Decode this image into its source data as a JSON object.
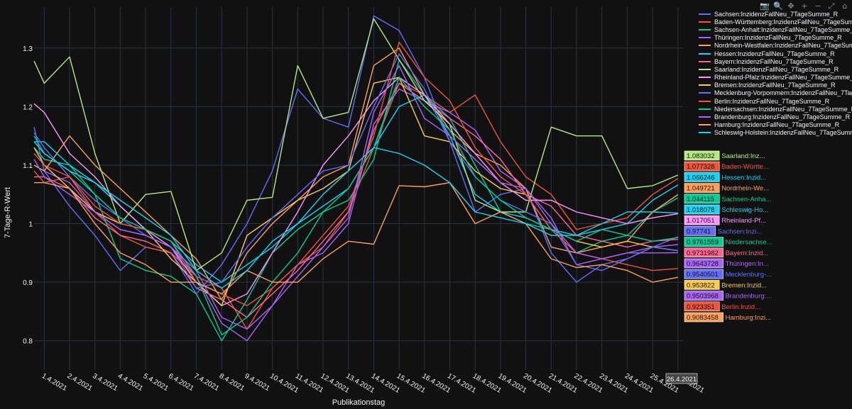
{
  "toolbar": {
    "icons": [
      "camera-icon",
      "zoom-icon",
      "pan-icon",
      "zoom-in-icon",
      "zoom-out-icon",
      "autoscale-icon",
      "reset-axes-icon"
    ]
  },
  "chart_data": {
    "type": "line",
    "xlabel": "Publikationstag",
    "ylabel": "7-Tage-R-Wert",
    "x_ticks": [
      "1.4.2021",
      "2.4.2021",
      "3.4.2021",
      "4.4.2021",
      "5.4.2021",
      "6.4.2021",
      "7.4.2021",
      "8.4.2021",
      "9.4.2021",
      "10.4.2021",
      "11.4.2021",
      "12.4.2021",
      "13.4.2021",
      "14.4.2021",
      "15.4.2021",
      "16.4.2021",
      "17.4.2021",
      "18.4.2021",
      "19.4.2021",
      "20.4.2021",
      "21.4.2021",
      "22.4.2021",
      "23.4.2021",
      "24.4.2021",
      "25.4.2021",
      "26.4.2021"
    ],
    "x_range": [
      0.6,
      26.2
    ],
    "y_ticks": [
      0.8,
      0.9,
      1,
      1.1,
      1.2,
      1.3
    ],
    "y_tick_labels": [
      "0.8",
      "0.9",
      "1",
      "1.1",
      "1.2",
      "1.3"
    ],
    "ylim": [
      0.75,
      1.37
    ],
    "hover_x_label": "26.4.2021",
    "series": [
      {
        "name": "Sachsen:InzidenzFallNeu_7TageSumme_R",
        "color": "#636efa",
        "hover_value": "0.97741",
        "hover_short": "Sachsen:Inzi...",
        "x": [
          0.6,
          1,
          2,
          3,
          4,
          5,
          6,
          7,
          8,
          9,
          10,
          11,
          12,
          13,
          14,
          15,
          16,
          17,
          18,
          19,
          20,
          21,
          22,
          23,
          24,
          25,
          26
        ],
        "values": [
          1.165,
          1.09,
          1.03,
          0.98,
          0.92,
          0.96,
          0.95,
          0.88,
          0.93,
          1.0,
          1.09,
          1.23,
          1.18,
          1.165,
          1.355,
          1.33,
          1.25,
          1.14,
          1.02,
          1.05,
          1.06,
          0.95,
          0.9,
          0.93,
          0.94,
          0.96,
          0.97741
        ]
      },
      {
        "name": "Baden-Württemberg:InzidenzFallNeu_7TageSumme_R",
        "color": "#ef553b",
        "hover_value": "1.077328",
        "hover_short": "Baden-Württe...",
        "x": [
          0.6,
          1,
          2,
          3,
          4,
          5,
          6,
          7,
          8,
          9,
          10,
          11,
          12,
          13,
          14,
          15,
          16,
          17,
          18,
          19,
          20,
          21,
          22,
          23,
          24,
          25,
          26
        ],
        "values": [
          1.09,
          1.07,
          1.08,
          1.02,
          0.98,
          0.96,
          0.95,
          0.91,
          0.89,
          0.82,
          0.89,
          0.93,
          0.96,
          1.02,
          1.13,
          1.24,
          1.22,
          1.19,
          1.22,
          1.14,
          1.08,
          1.05,
          0.99,
          1.0,
          1.01,
          1.05,
          1.077328
        ]
      },
      {
        "name": "Sachsen-Anhalt:InzidenzFallNeu_7TageSumme_R",
        "color": "#00cc96",
        "hover_value": "1.044115",
        "hover_short": "Sachsen-Anha...",
        "x": [
          0.6,
          1,
          2,
          3,
          4,
          5,
          6,
          7,
          8,
          9,
          10,
          11,
          12,
          13,
          14,
          15,
          16,
          17,
          18,
          19,
          20,
          21,
          22,
          23,
          24,
          25,
          26
        ],
        "values": [
          1.13,
          1.11,
          1.1,
          1.05,
          0.94,
          0.92,
          0.91,
          0.88,
          0.8,
          0.87,
          0.95,
          0.99,
          1.02,
          1.04,
          1.11,
          1.28,
          1.22,
          1.18,
          1.1,
          1.02,
          1.0,
          0.99,
          0.95,
          0.97,
          0.98,
          1.02,
          1.044115
        ]
      },
      {
        "name": "Thüringen:InzidenzFallNeu_7TageSumme_R",
        "color": "#ab63fa",
        "hover_value": "0.9643728",
        "hover_short": "Thüringen:In...",
        "x": [
          0.6,
          1,
          2,
          3,
          4,
          5,
          6,
          7,
          8,
          9,
          10,
          11,
          12,
          13,
          14,
          15,
          16,
          17,
          18,
          19,
          20,
          21,
          22,
          23,
          24,
          25,
          26
        ],
        "values": [
          1.1,
          1.09,
          1.07,
          1.02,
          0.99,
          0.98,
          0.96,
          0.91,
          0.83,
          0.8,
          0.86,
          0.93,
          0.95,
          1.0,
          1.17,
          1.23,
          1.21,
          1.19,
          1.16,
          1.09,
          1.06,
          1.01,
          0.93,
          0.94,
          0.95,
          0.96,
          0.9643728
        ]
      },
      {
        "name": "Nordrhein-Westfalen:InzidenzFallNeu_7TageSumme_R",
        "color": "#ffa15a",
        "hover_value": "1.049721",
        "hover_short": "Nordrhein-We...",
        "x": [
          0.6,
          1,
          2,
          3,
          4,
          5,
          6,
          7,
          8,
          9,
          10,
          11,
          12,
          13,
          14,
          15,
          16,
          17,
          18,
          19,
          20,
          21,
          22,
          23,
          24,
          25,
          26
        ],
        "values": [
          1.1,
          1.09,
          1.15,
          1.1,
          1.06,
          1.02,
          0.98,
          0.94,
          0.87,
          0.95,
          1.0,
          1.04,
          1.08,
          1.1,
          1.27,
          1.3,
          1.22,
          1.16,
          1.12,
          1.1,
          1.06,
          0.96,
          0.95,
          0.96,
          0.97,
          1.02,
          1.049721
        ]
      },
      {
        "name": "Hessen:InzidenzFallNeu_7TageSumme_R",
        "color": "#19d3f3",
        "hover_value": "1.066246",
        "hover_short": "Hessen:Inzid...",
        "x": [
          0.6,
          1,
          2,
          3,
          4,
          5,
          6,
          7,
          8,
          9,
          10,
          11,
          12,
          13,
          14,
          15,
          16,
          17,
          18,
          19,
          20,
          21,
          22,
          23,
          24,
          25,
          26
        ],
        "values": [
          1.14,
          1.14,
          1.1,
          1.07,
          1.03,
          0.99,
          0.97,
          0.93,
          0.9,
          0.93,
          0.96,
          1.0,
          1.03,
          1.06,
          1.13,
          1.2,
          1.22,
          1.15,
          1.05,
          1.02,
          1.01,
          0.99,
          0.98,
          0.99,
          1.0,
          1.04,
          1.066246
        ]
      },
      {
        "name": "Bayern:InzidenzFallNeu_7TageSumme_R",
        "color": "#ff6692",
        "hover_value": "0.9731982",
        "hover_short": "Bayern:Inzid...",
        "x": [
          0.6,
          1,
          2,
          3,
          4,
          5,
          6,
          7,
          8,
          9,
          10,
          11,
          12,
          13,
          14,
          15,
          16,
          17,
          18,
          19,
          20,
          21,
          22,
          23,
          24,
          25,
          26
        ],
        "values": [
          1.08,
          1.08,
          1.06,
          1.01,
          0.98,
          0.97,
          0.95,
          0.89,
          0.87,
          0.84,
          0.88,
          0.92,
          0.97,
          1.02,
          1.16,
          1.24,
          1.21,
          1.18,
          1.15,
          1.11,
          1.05,
          1.03,
          0.98,
          0.97,
          0.96,
          0.97,
          0.9731982
        ]
      },
      {
        "name": "Saarland:InzidenzFallNeu_7TageSumme_R",
        "color": "#b6e880",
        "hover_value": "1.083032",
        "hover_short": "Saarland:Inz...",
        "x": [
          0.6,
          1,
          2,
          3,
          4,
          5,
          6,
          7,
          8,
          9,
          10,
          11,
          12,
          13,
          14,
          15,
          16,
          17,
          18,
          19,
          20,
          21,
          22,
          23,
          24,
          25,
          26
        ],
        "values": [
          1.278,
          1.24,
          1.285,
          1.12,
          1.0,
          1.05,
          1.055,
          0.92,
          0.95,
          1.04,
          1.045,
          1.27,
          1.18,
          1.19,
          1.35,
          1.28,
          1.21,
          1.17,
          1.04,
          1.02,
          1.02,
          1.165,
          1.15,
          1.15,
          1.06,
          1.065,
          1.083032
        ]
      },
      {
        "name": "Rheinland-Pfalz:InzidenzFallNeu_7TageSumme_R",
        "color": "#ff97ff",
        "hover_value": "1.017051",
        "hover_short": "Rheinland-Pf...",
        "x": [
          0.6,
          1,
          2,
          3,
          4,
          5,
          6,
          7,
          8,
          9,
          10,
          11,
          12,
          13,
          14,
          15,
          16,
          17,
          18,
          19,
          20,
          21,
          22,
          23,
          24,
          25,
          26
        ],
        "values": [
          1.205,
          1.19,
          1.12,
          1.08,
          1.03,
          0.99,
          0.96,
          0.9,
          0.86,
          0.88,
          0.95,
          1.02,
          1.1,
          1.15,
          1.21,
          1.25,
          1.22,
          1.17,
          1.12,
          1.07,
          1.04,
          1.04,
          1.02,
          1.01,
          1.0,
          1.01,
          1.017051
        ]
      },
      {
        "name": "Bremen:InzidenzFallNeu_7TageSumme_R",
        "color": "#fecb52",
        "hover_value": "0.953822",
        "hover_short": "Bremen:Inzid...",
        "x": [
          0.6,
          1,
          2,
          3,
          4,
          5,
          6,
          7,
          8,
          9,
          10,
          11,
          12,
          13,
          14,
          15,
          16,
          17,
          18,
          19,
          20,
          21,
          22,
          23,
          24,
          25,
          26
        ],
        "values": [
          1.13,
          1.1,
          1.06,
          1.02,
          1.0,
          0.99,
          0.94,
          0.9,
          0.86,
          0.98,
          1.01,
          1.04,
          1.06,
          1.09,
          1.24,
          1.25,
          1.15,
          1.14,
          1.09,
          1.06,
          1.05,
          0.99,
          0.97,
          0.96,
          0.97,
          0.96,
          0.953822
        ]
      },
      {
        "name": "Mecklenburg-Vorpommern:InzidenzFallNeu_7TageSumme_R",
        "color": "#636efa",
        "hover_value": "0.9540501",
        "hover_short": "Mecklenburg-...",
        "x": [
          0.6,
          1,
          2,
          3,
          4,
          5,
          6,
          7,
          8,
          9,
          10,
          11,
          12,
          13,
          14,
          15,
          16,
          17,
          18,
          19,
          20,
          21,
          22,
          23,
          24,
          25,
          26
        ],
        "values": [
          1.155,
          1.13,
          1.08,
          1.04,
          1.01,
          0.98,
          0.96,
          0.89,
          0.9,
          0.96,
          1.01,
          1.05,
          1.09,
          1.1,
          1.2,
          1.29,
          1.23,
          1.14,
          1.08,
          1.04,
          1.02,
          1.0,
          0.93,
          0.92,
          0.94,
          0.96,
          0.9540501
        ]
      },
      {
        "name": "Berlin:InzidenzFallNeu_7TageSumme_R",
        "color": "#ef553b",
        "hover_value": "0.923351",
        "hover_short": "Berlin:Inzid...",
        "x": [
          0.6,
          1,
          2,
          3,
          4,
          5,
          6,
          7,
          8,
          9,
          10,
          11,
          12,
          13,
          14,
          15,
          16,
          17,
          18,
          19,
          20,
          21,
          22,
          23,
          24,
          25,
          26
        ],
        "values": [
          1.12,
          1.1,
          1.08,
          1.03,
          1.0,
          0.99,
          0.97,
          0.9,
          0.88,
          0.86,
          0.89,
          0.93,
          0.98,
          1.03,
          1.15,
          1.31,
          1.25,
          1.21,
          1.13,
          1.08,
          1.05,
          0.99,
          0.95,
          0.94,
          0.93,
          0.92,
          0.923351
        ]
      },
      {
        "name": "Niedersachsen:InzidenzFallNeu_7TageSumme_R",
        "color": "#00cc96",
        "hover_value": "0.9761559",
        "hover_short": "Niedersachse...",
        "x": [
          0.6,
          1,
          2,
          3,
          4,
          5,
          6,
          7,
          8,
          9,
          10,
          11,
          12,
          13,
          14,
          15,
          16,
          17,
          18,
          19,
          20,
          21,
          22,
          23,
          24,
          25,
          26
        ],
        "values": [
          1.15,
          1.12,
          1.09,
          1.05,
          1.01,
          0.99,
          0.97,
          0.91,
          0.81,
          0.84,
          0.9,
          0.95,
          1.02,
          1.06,
          1.13,
          1.25,
          1.2,
          1.16,
          1.08,
          1.04,
          1.01,
          0.99,
          0.97,
          0.99,
          0.98,
          0.97,
          0.9761559
        ]
      },
      {
        "name": "Brandenburg:InzidenzFallNeu_7TageSumme_R",
        "color": "#ab63fa",
        "hover_value": "0.9503968",
        "hover_short": "Brandenburg:...",
        "x": [
          0.6,
          1,
          2,
          3,
          4,
          5,
          6,
          7,
          8,
          9,
          10,
          11,
          12,
          13,
          14,
          15,
          16,
          17,
          18,
          19,
          20,
          21,
          22,
          23,
          24,
          25,
          26
        ],
        "values": [
          1.11,
          1.08,
          1.05,
          1.02,
          0.99,
          0.98,
          0.96,
          0.92,
          0.84,
          0.82,
          0.86,
          0.91,
          0.96,
          1.01,
          1.19,
          1.27,
          1.18,
          1.15,
          1.11,
          1.07,
          1.06,
          1.0,
          0.95,
          0.94,
          0.95,
          0.95,
          0.9503968
        ]
      },
      {
        "name": "Hamburg:InzidenzFallNeu_7TageSumme_R",
        "color": "#ffa15a",
        "hover_value": "0.9083458",
        "hover_short": "Hamburg:Inzi...",
        "x": [
          0.6,
          1,
          2,
          3,
          4,
          5,
          6,
          7,
          8,
          9,
          10,
          11,
          12,
          13,
          14,
          15,
          16,
          17,
          18,
          19,
          20,
          21,
          22,
          23,
          24,
          25,
          26
        ],
        "values": [
          1.07,
          1.07,
          1.06,
          1.0,
          0.95,
          0.93,
          0.9,
          0.9,
          0.88,
          0.92,
          0.9,
          0.9,
          0.94,
          0.97,
          0.965,
          1.065,
          1.063,
          1.07,
          1.0,
          1.02,
          1.0,
          0.94,
          0.925,
          0.93,
          0.92,
          0.9,
          0.9083458
        ]
      },
      {
        "name": "Schleswig-Holstein:InzidenzFallNeu_7TageSumme_R",
        "color": "#19d3f3",
        "hover_value": "1.018078",
        "hover_short": "Schleswig-Ho...",
        "x": [
          0.6,
          1,
          2,
          3,
          4,
          5,
          6,
          7,
          8,
          9,
          10,
          11,
          12,
          13,
          14,
          15,
          16,
          17,
          18,
          19,
          20,
          21,
          22,
          23,
          24,
          25,
          26
        ],
        "values": [
          1.14,
          1.12,
          1.09,
          1.07,
          1.04,
          1.01,
          0.98,
          0.92,
          0.89,
          0.92,
          0.97,
          1.0,
          1.05,
          1.09,
          1.13,
          1.12,
          1.1,
          1.07,
          1.02,
          1.01,
          1.0,
          0.98,
          0.98,
          1.0,
          1.02,
          1.02,
          1.018078
        ]
      }
    ]
  }
}
